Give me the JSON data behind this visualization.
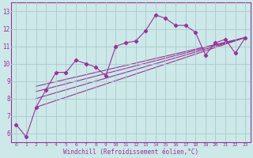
{
  "xlabel": "Windchill (Refroidissement éolien,°C)",
  "bg_color": "#cce8e8",
  "line_color": "#993399",
  "grid_color": "#aacccc",
  "xlim": [
    -0.5,
    23.5
  ],
  "ylim": [
    5.5,
    13.5
  ],
  "xticks": [
    0,
    1,
    2,
    3,
    4,
    5,
    6,
    7,
    8,
    9,
    10,
    11,
    12,
    13,
    14,
    15,
    16,
    17,
    18,
    19,
    20,
    21,
    22,
    23
  ],
  "yticks": [
    6,
    7,
    8,
    9,
    10,
    11,
    12,
    13
  ],
  "main_x": [
    0,
    1,
    2,
    3,
    4,
    5,
    6,
    7,
    8,
    9,
    10,
    11,
    12,
    13,
    14,
    15,
    16,
    17,
    18,
    19,
    20,
    21,
    22,
    23
  ],
  "main_y": [
    6.5,
    5.8,
    7.5,
    8.5,
    9.5,
    9.5,
    10.2,
    10.0,
    9.8,
    9.3,
    11.0,
    11.2,
    11.3,
    11.9,
    12.8,
    12.6,
    12.2,
    12.2,
    11.8,
    10.5,
    11.2,
    11.4,
    10.6,
    11.5
  ],
  "trend_lines": [
    {
      "x0": 2,
      "y0": 7.5,
      "x1": 23,
      "y1": 11.5
    },
    {
      "x0": 2,
      "y0": 8.0,
      "x1": 23,
      "y1": 11.5
    },
    {
      "x0": 2,
      "y0": 8.4,
      "x1": 23,
      "y1": 11.5
    },
    {
      "x0": 2,
      "y0": 8.7,
      "x1": 23,
      "y1": 11.5
    }
  ]
}
